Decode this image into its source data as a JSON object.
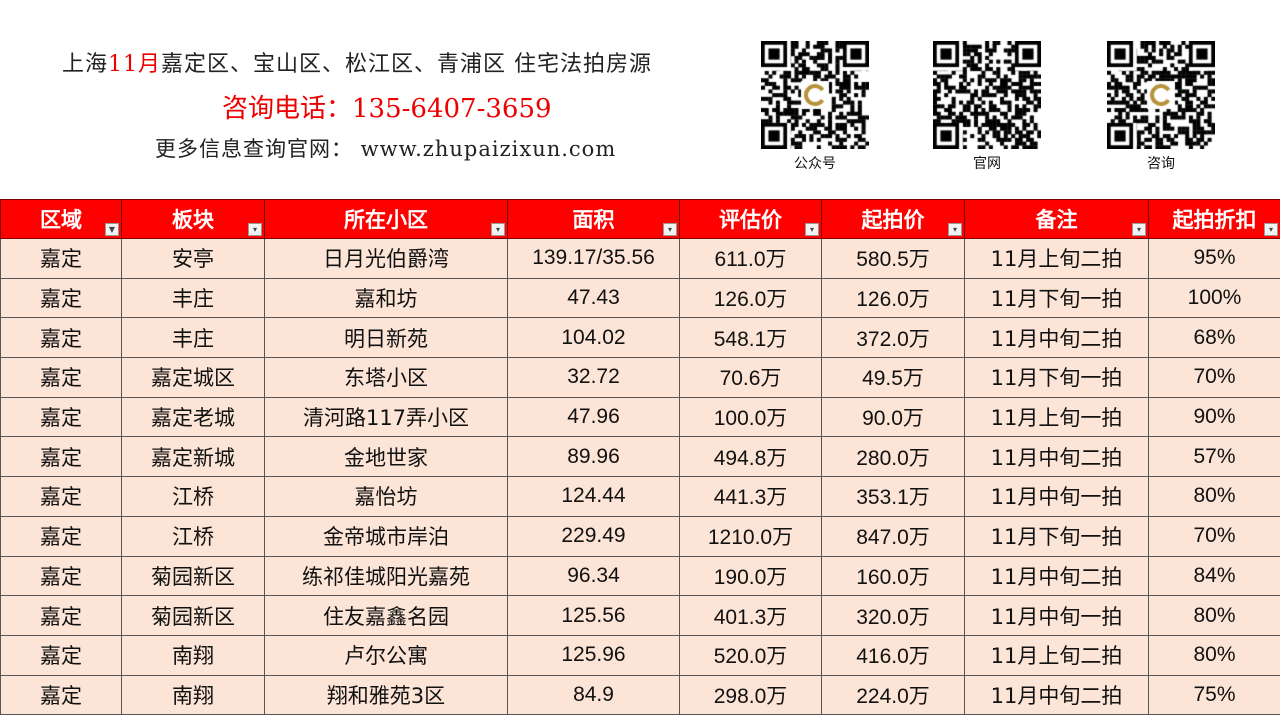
{
  "header": {
    "title_prefix": "上海",
    "title_month": "11月",
    "title_suffix": "嘉定区、宝山区、松江区、青浦区 住宅法拍房源",
    "phone": "咨询电话：135-6407-3659",
    "website": "更多信息查询官网： www.zhupaizixun.com"
  },
  "qr_codes": [
    {
      "label": "公众号"
    },
    {
      "label": "官网"
    },
    {
      "label": "咨询"
    }
  ],
  "table": {
    "columns": [
      "区域",
      "板块",
      "所在小区",
      "面积",
      "评估价",
      "起拍价",
      "备注",
      "起拍折扣"
    ],
    "accent_color": "#ff0000",
    "row_color": "#fce4d6",
    "rows": [
      [
        "嘉定",
        "安亭",
        "日月光伯爵湾",
        "139.17/35.56",
        "611.0万",
        "580.5万",
        "11月上旬二拍",
        "95%"
      ],
      [
        "嘉定",
        "丰庄",
        "嘉和坊",
        "47.43",
        "126.0万",
        "126.0万",
        "11月下旬一拍",
        "100%"
      ],
      [
        "嘉定",
        "丰庄",
        "明日新苑",
        "104.02",
        "548.1万",
        "372.0万",
        "11月中旬二拍",
        "68%"
      ],
      [
        "嘉定",
        "嘉定城区",
        "东塔小区",
        "32.72",
        "70.6万",
        "49.5万",
        "11月下旬一拍",
        "70%"
      ],
      [
        "嘉定",
        "嘉定老城",
        "清河路117弄小区",
        "47.96",
        "100.0万",
        "90.0万",
        "11月上旬一拍",
        "90%"
      ],
      [
        "嘉定",
        "嘉定新城",
        "金地世家",
        "89.96",
        "494.8万",
        "280.0万",
        "11月中旬二拍",
        "57%"
      ],
      [
        "嘉定",
        "江桥",
        "嘉怡坊",
        "124.44",
        "441.3万",
        "353.1万",
        "11月中旬一拍",
        "80%"
      ],
      [
        "嘉定",
        "江桥",
        "金帝城市岸泊",
        "229.49",
        "1210.0万",
        "847.0万",
        "11月下旬一拍",
        "70%"
      ],
      [
        "嘉定",
        "菊园新区",
        "练祁佳城阳光嘉苑",
        "96.34",
        "190.0万",
        "160.0万",
        "11月中旬二拍",
        "84%"
      ],
      [
        "嘉定",
        "菊园新区",
        "住友嘉鑫名园",
        "125.56",
        "401.3万",
        "320.0万",
        "11月中旬一拍",
        "80%"
      ],
      [
        "嘉定",
        "南翔",
        "卢尔公寓",
        "125.96",
        "520.0万",
        "416.0万",
        "11月上旬二拍",
        "80%"
      ],
      [
        "嘉定",
        "南翔",
        "翔和雅苑3区",
        "84.9",
        "298.0万",
        "224.0万",
        "11月中旬二拍",
        "75%"
      ]
    ]
  }
}
